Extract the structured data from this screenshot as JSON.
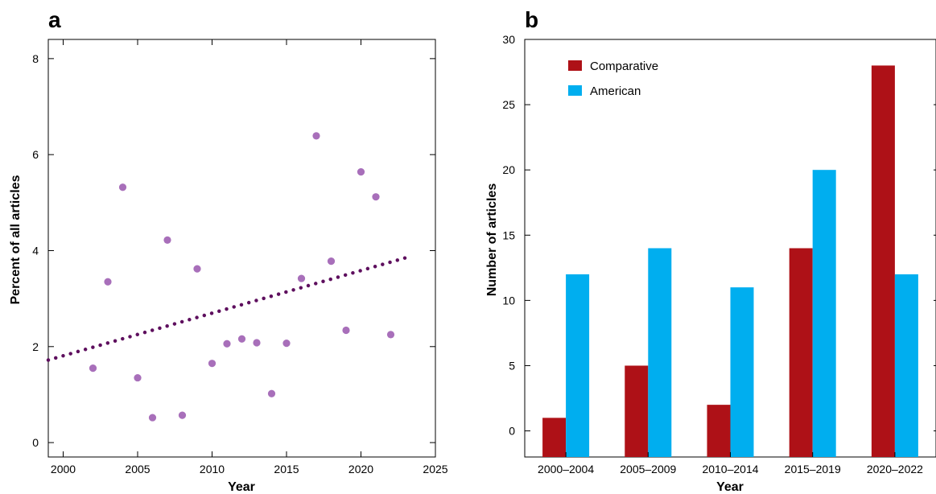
{
  "chart_data": [
    {
      "panel": "a",
      "type": "scatter",
      "xlabel": "Year",
      "ylabel": "Percent of all articles",
      "xlim": [
        1999,
        2025
      ],
      "ylim": [
        -0.3,
        8.4
      ],
      "xticks": [
        2000,
        2005,
        2010,
        2015,
        2020,
        2025
      ],
      "yticks": [
        0,
        2,
        4,
        6,
        8
      ],
      "point_color": "#a86fba",
      "trend_color": "#5e0f5e",
      "points": [
        {
          "x": 2002,
          "y": 1.55
        },
        {
          "x": 2003,
          "y": 3.35
        },
        {
          "x": 2004,
          "y": 5.32
        },
        {
          "x": 2005,
          "y": 1.35
        },
        {
          "x": 2006,
          "y": 0.52
        },
        {
          "x": 2007,
          "y": 4.22
        },
        {
          "x": 2008,
          "y": 0.57
        },
        {
          "x": 2009,
          "y": 3.62
        },
        {
          "x": 2010,
          "y": 1.65
        },
        {
          "x": 2011,
          "y": 2.06
        },
        {
          "x": 2012,
          "y": 2.16
        },
        {
          "x": 2013,
          "y": 2.08
        },
        {
          "x": 2014,
          "y": 1.02
        },
        {
          "x": 2015,
          "y": 2.07
        },
        {
          "x": 2016,
          "y": 3.42
        },
        {
          "x": 2017,
          "y": 6.39
        },
        {
          "x": 2018,
          "y": 3.78
        },
        {
          "x": 2019,
          "y": 2.34
        },
        {
          "x": 2020,
          "y": 5.64
        },
        {
          "x": 2021,
          "y": 5.12
        },
        {
          "x": 2022,
          "y": 2.25
        }
      ],
      "trendline": {
        "x": [
          1999,
          2023
        ],
        "y": [
          1.72,
          3.85
        ]
      }
    },
    {
      "panel": "b",
      "type": "bar",
      "xlabel": "Year",
      "ylabel": "Number of articles",
      "categories": [
        "2000–2004",
        "2005–2009",
        "2010–2014",
        "2015–2019",
        "2020–2022"
      ],
      "ylim": [
        -2,
        30
      ],
      "yticks": [
        0,
        5,
        10,
        15,
        20,
        25,
        30
      ],
      "series": [
        {
          "name": "Comparative",
          "color": "#ae1117",
          "values": [
            1,
            5,
            2,
            14,
            28
          ]
        },
        {
          "name": "American",
          "color": "#00aeef",
          "values": [
            12,
            14,
            11,
            20,
            12
          ]
        }
      ]
    }
  ]
}
